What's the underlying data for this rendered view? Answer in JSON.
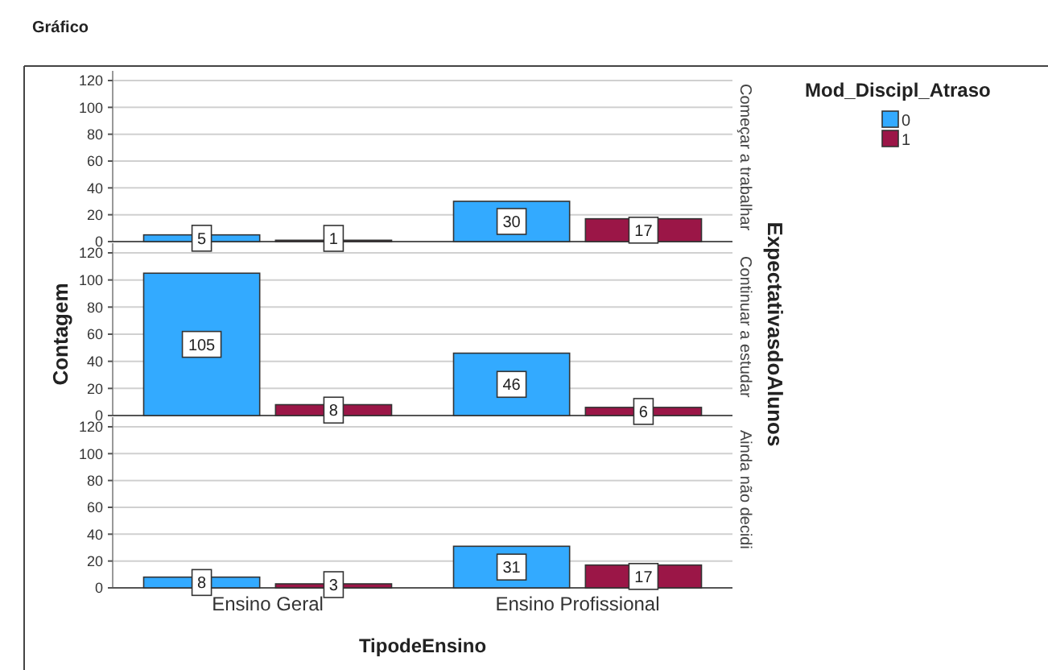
{
  "chart_data": [
    {
      "type": "bar",
      "title": "Começar a trabalhar",
      "annotations": [
        "Gráfico"
      ],
      "categories": [
        null,
        null
      ],
      "series": [
        {
          "name": "0",
          "color": "#33aaff",
          "values": [
            5,
            30
          ]
        },
        {
          "name": "1",
          "color": "#9b1647",
          "values": [
            1,
            17
          ]
        }
      ],
      "ylim": [
        0,
        120
      ],
      "yticks": [
        0,
        20,
        40,
        60,
        80,
        100,
        120
      ],
      "grid": "y",
      "data_labels": true,
      "legend": "right",
      "legend_title": "Mod_Discipl_Atraso"
    },
    {
      "type": "bar",
      "title": "Continuar a estudar",
      "ylabel": "Contagem",
      "y2label": "ExpectativasdoAlunos",
      "categories": [
        null,
        null
      ],
      "series": [
        {
          "color": "#33aaff",
          "values": [
            105,
            46
          ]
        },
        {
          "color": "#9b1647",
          "values": [
            8,
            6
          ]
        }
      ],
      "ylim": [
        0,
        120
      ],
      "yticks": [
        0,
        20,
        40,
        60,
        80,
        100,
        120
      ],
      "grid": "y",
      "data_labels": true
    },
    {
      "type": "bar",
      "title": "Ainda não decidi",
      "xlabel": "TipodeEnsino",
      "categories": [
        "Ensino Geral",
        "Ensino Profissional"
      ],
      "series": [
        {
          "color": "#33aaff",
          "values": [
            8,
            31
          ]
        },
        {
          "color": "#9b1647",
          "values": [
            3,
            17
          ]
        }
      ],
      "ylim": [
        0,
        120
      ],
      "yticks": [
        0,
        20,
        40,
        60,
        80,
        100,
        120
      ],
      "grid": "y",
      "data_labels": true
    }
  ]
}
